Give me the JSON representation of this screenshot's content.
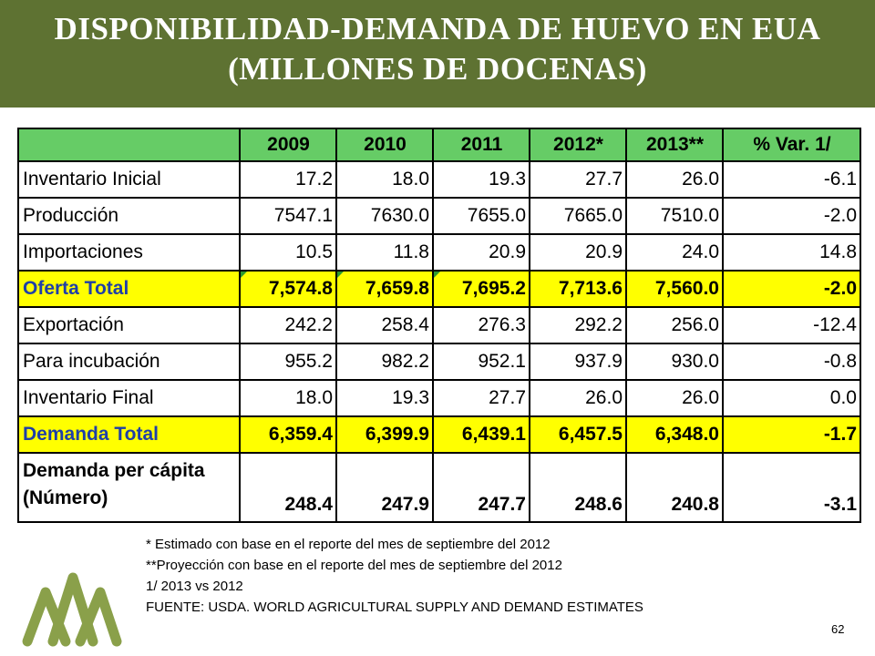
{
  "header": {
    "title_line1": "DISPONIBILIDAD-DEMANDA DE HUEVO EN EUA",
    "title_line2": "(MILLONES DE DOCENAS)"
  },
  "table": {
    "columns": [
      "",
      "2009",
      "2010",
      "2011",
      "2012*",
      "2013**",
      "% Var. 1/"
    ],
    "rows": [
      {
        "label": "Inventario Inicial",
        "values": [
          "17.2",
          "18.0",
          "19.3",
          "27.7",
          "26.0",
          "-6.1"
        ]
      },
      {
        "label": "Producción",
        "values": [
          "7547.1",
          "7630.0",
          "7655.0",
          "7665.0",
          "7510.0",
          "-2.0"
        ]
      },
      {
        "label": "Importaciones",
        "values": [
          "10.5",
          "11.8",
          "20.9",
          "20.9",
          "24.0",
          "14.8"
        ]
      },
      {
        "label": "Oferta Total",
        "values": [
          "7,574.8",
          "7,659.8",
          "7,695.2",
          "7,713.6",
          "7,560.0",
          "-2.0"
        ]
      },
      {
        "label": "Exportación",
        "values": [
          "242.2",
          "258.4",
          "276.3",
          "292.2",
          "256.0",
          "-12.4"
        ]
      },
      {
        "label": "Para incubación",
        "values": [
          "955.2",
          "982.2",
          "952.1",
          "937.9",
          "930.0",
          "-0.8"
        ]
      },
      {
        "label": "Inventario Final",
        "values": [
          "18.0",
          "19.3",
          "27.7",
          "26.0",
          "26.0",
          "0.0"
        ]
      },
      {
        "label": "Demanda Total",
        "values": [
          "6,359.4",
          "6,399.9",
          "6,439.1",
          "6,457.5",
          "6,348.0",
          "-1.7"
        ]
      },
      {
        "label_line1": "Demanda per cápita",
        "label_line2": "(Número)",
        "values": [
          "248.4",
          "247.9",
          "247.7",
          "248.6",
          "240.8",
          "-3.1"
        ]
      }
    ]
  },
  "notes": [
    "* Estimado con base en el reporte del mes de septiembre del 2012",
    "**Proyección con base en el reporte del mes de septiembre del 2012",
    "1/ 2013 vs 2012",
    "FUENTE: USDA. WORLD AGRICULTURAL SUPPLY AND DEMAND ESTIMATES"
  ],
  "page_number": "62",
  "colors": {
    "header_band": "#5e7232",
    "table_header": "#66cc66",
    "highlight_row": "#ffff00",
    "highlight_label": "#1f3fa8",
    "logo": "#8aa04a"
  },
  "logo_icon": "mountains-logo-icon"
}
